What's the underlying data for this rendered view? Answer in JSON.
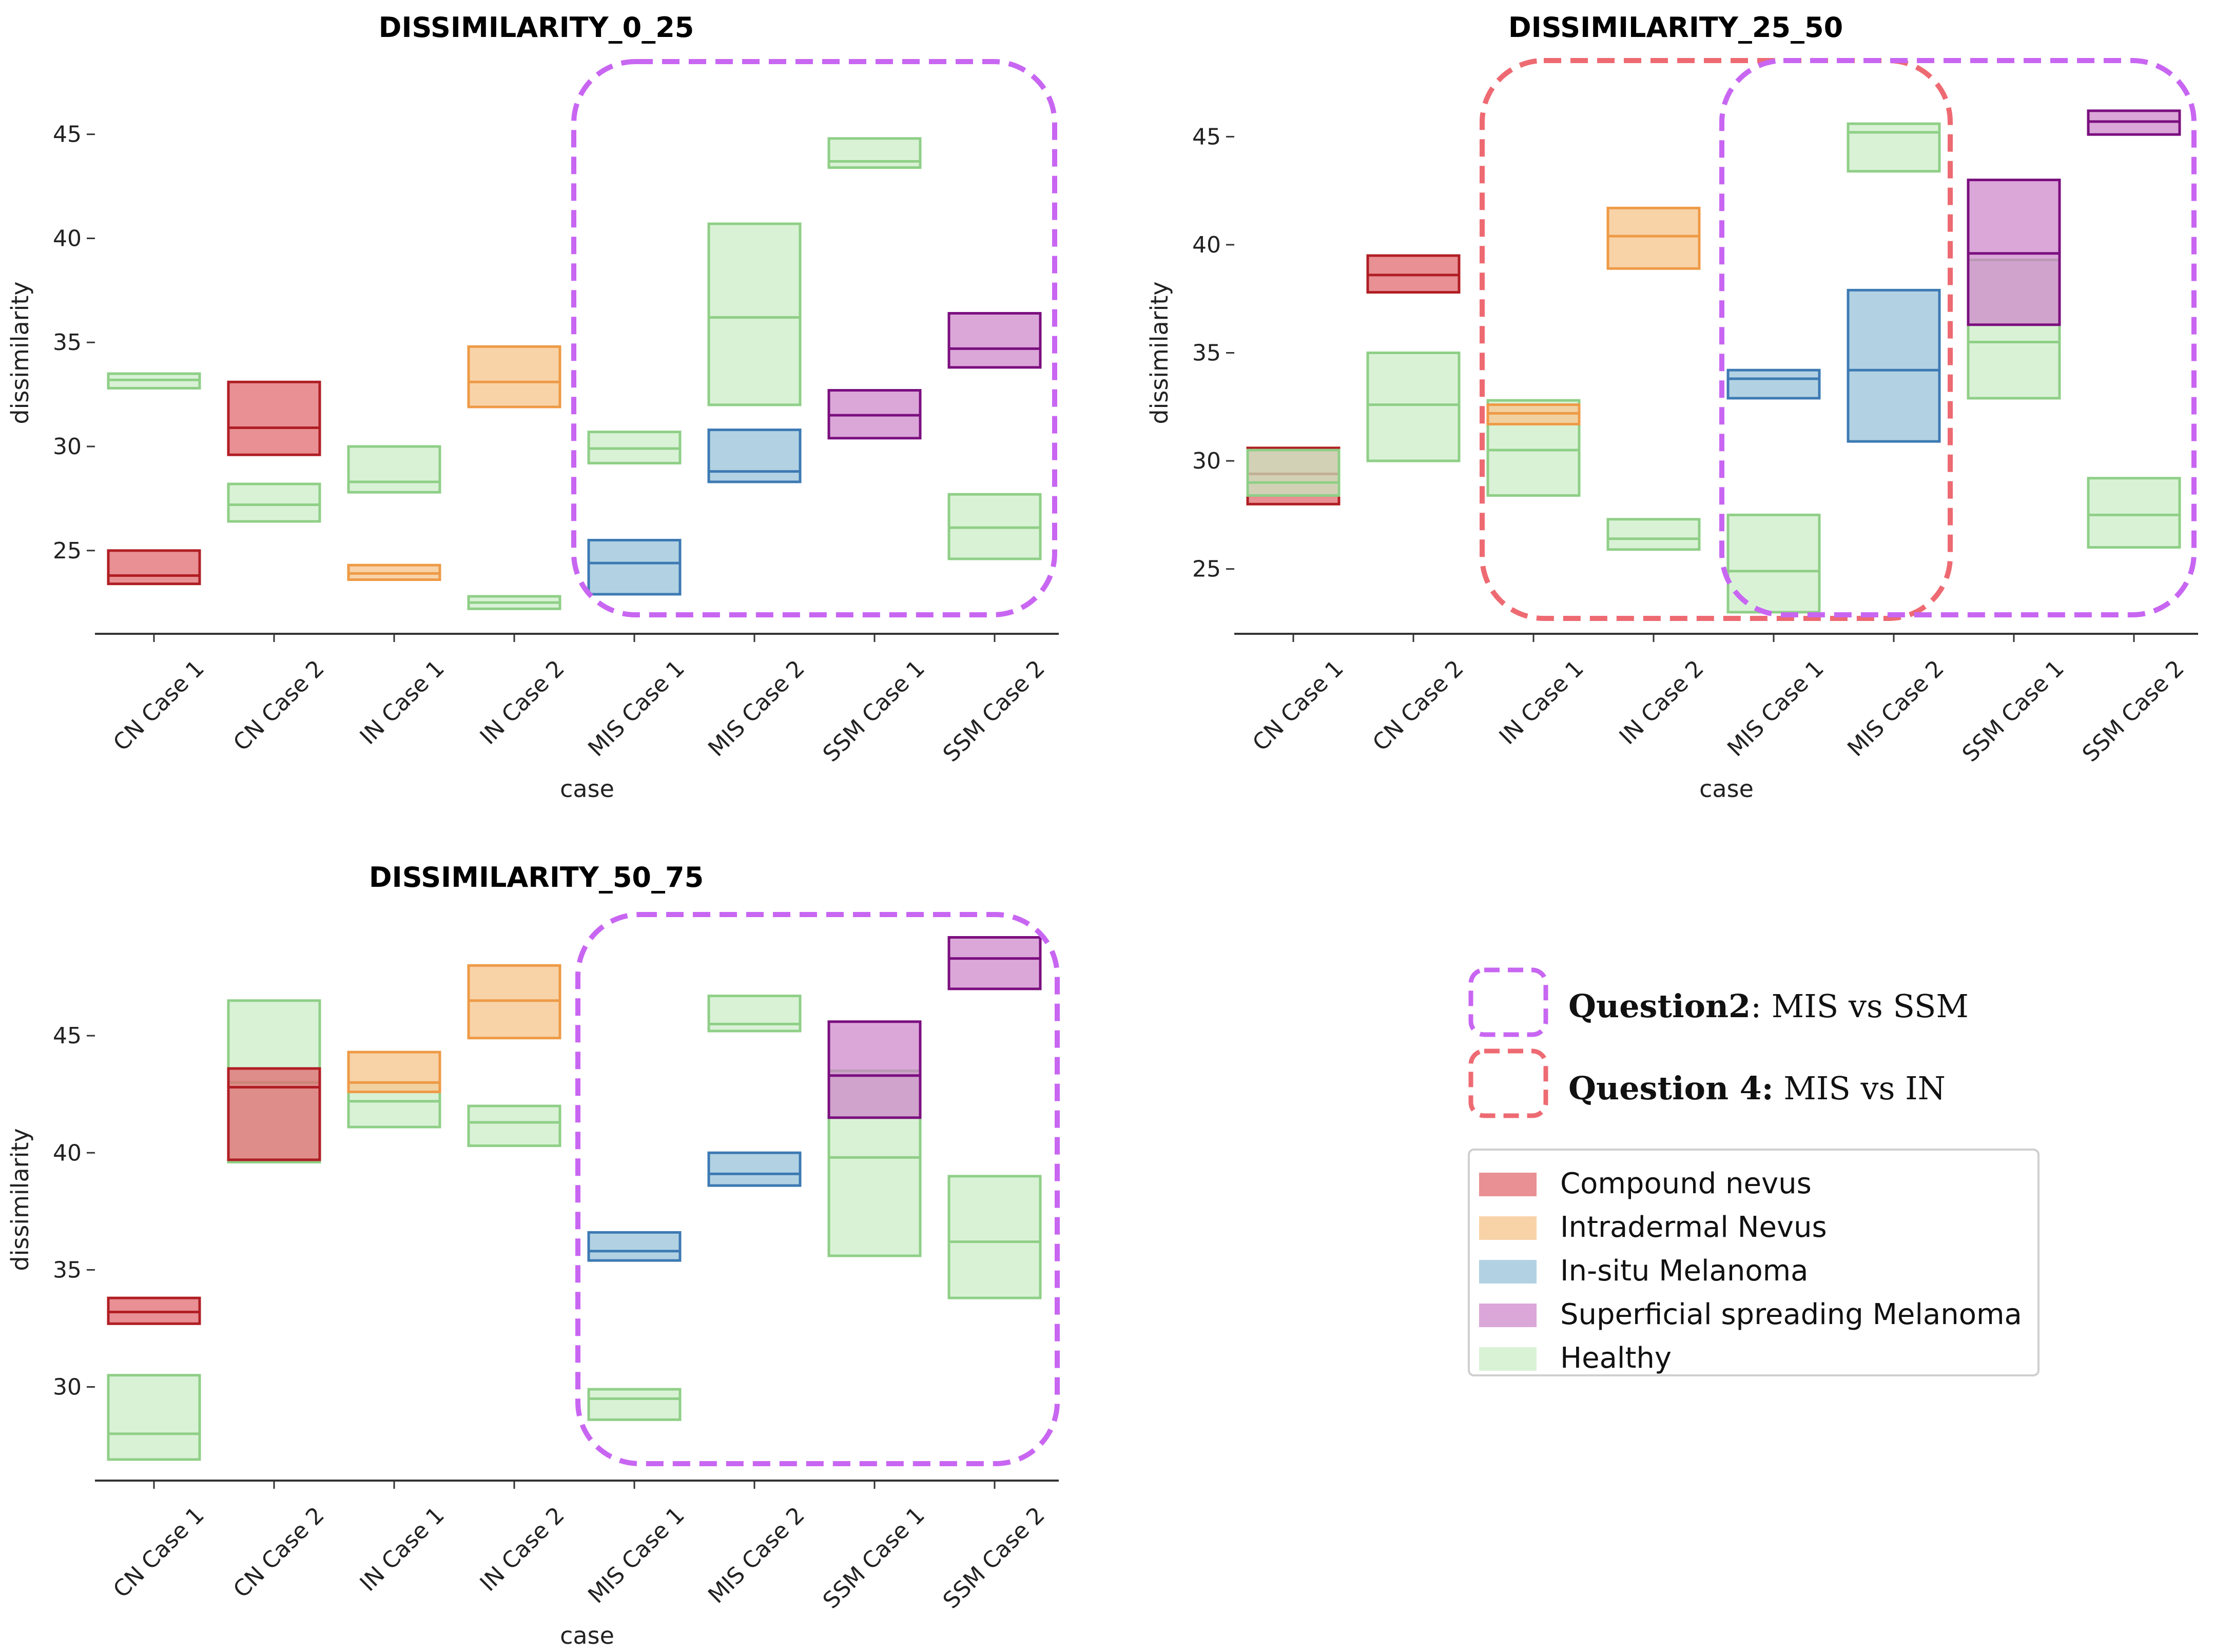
{
  "chart_data": [
    {
      "type": "box",
      "title": "DISSIMILARITY_0_25",
      "xlabel": "case",
      "ylabel": "dissimilarity",
      "ylim": [
        21,
        48
      ],
      "yticks": [
        25,
        30,
        35,
        40,
        45
      ],
      "categories": [
        "CN Case 1",
        "CN Case 2",
        "IN Case 1",
        "IN Case 2",
        "MIS Case 1",
        "MIS Case 2",
        "SSM Case 1",
        "SSM Case 2"
      ],
      "boxes": [
        {
          "cat": 0,
          "cls": "healthy",
          "q1": 32.8,
          "median": 33.2,
          "q3": 33.5
        },
        {
          "cat": 0,
          "cls": "cn",
          "q1": 23.4,
          "median": 23.8,
          "q3": 25.0
        },
        {
          "cat": 1,
          "cls": "healthy",
          "q1": 26.4,
          "median": 27.2,
          "q3": 28.2
        },
        {
          "cat": 1,
          "cls": "cn",
          "q1": 29.6,
          "median": 30.9,
          "q3": 33.1
        },
        {
          "cat": 2,
          "cls": "healthy",
          "q1": 27.8,
          "median": 28.3,
          "q3": 30.0
        },
        {
          "cat": 2,
          "cls": "in",
          "q1": 23.6,
          "median": 23.9,
          "q3": 24.3
        },
        {
          "cat": 3,
          "cls": "healthy",
          "q1": 22.2,
          "median": 22.5,
          "q3": 22.8
        },
        {
          "cat": 3,
          "cls": "in",
          "q1": 31.9,
          "median": 33.1,
          "q3": 34.8
        },
        {
          "cat": 4,
          "cls": "healthy",
          "q1": 29.2,
          "median": 29.9,
          "q3": 30.7
        },
        {
          "cat": 4,
          "cls": "mis",
          "q1": 22.9,
          "median": 24.4,
          "q3": 25.5
        },
        {
          "cat": 5,
          "cls": "healthy",
          "q1": 32.0,
          "median": 36.2,
          "q3": 40.7
        },
        {
          "cat": 5,
          "cls": "mis",
          "q1": 28.3,
          "median": 28.8,
          "q3": 30.8
        },
        {
          "cat": 6,
          "cls": "healthy",
          "q1": 43.4,
          "median": 43.7,
          "q3": 44.8
        },
        {
          "cat": 6,
          "cls": "ssm",
          "q1": 30.4,
          "median": 31.5,
          "q3": 32.7
        },
        {
          "cat": 7,
          "cls": "healthy",
          "q1": 24.6,
          "median": 26.1,
          "q3": 27.7
        },
        {
          "cat": 7,
          "cls": "ssm",
          "q1": 33.8,
          "median": 34.7,
          "q3": 36.4
        }
      ],
      "highlights": [
        {
          "question": "q2",
          "from_cat": 4,
          "to_cat": 7
        }
      ]
    },
    {
      "type": "box",
      "title": "DISSIMILARITY_25_50",
      "xlabel": "case",
      "ylabel": "dissimilarity",
      "ylim": [
        22,
        48
      ],
      "yticks": [
        25,
        30,
        35,
        40,
        45
      ],
      "categories": [
        "CN Case 1",
        "CN Case 2",
        "IN Case 1",
        "IN Case 2",
        "MIS Case 1",
        "MIS Case 2",
        "SSM Case 1",
        "SSM Case 2"
      ],
      "boxes": [
        {
          "cat": 0,
          "cls": "cn",
          "q1": 28.0,
          "median": 29.4,
          "q3": 30.6
        },
        {
          "cat": 0,
          "cls": "healthy",
          "q1": 28.4,
          "median": 29.0,
          "q3": 30.5
        },
        {
          "cat": 1,
          "cls": "healthy",
          "q1": 30.0,
          "median": 32.6,
          "q3": 35.0
        },
        {
          "cat": 1,
          "cls": "cn",
          "q1": 37.8,
          "median": 38.6,
          "q3": 39.5
        },
        {
          "cat": 2,
          "cls": "healthy",
          "q1": 28.4,
          "median": 30.5,
          "q3": 32.8
        },
        {
          "cat": 2,
          "cls": "in",
          "q1": 31.7,
          "median": 32.2,
          "q3": 32.6
        },
        {
          "cat": 3,
          "cls": "healthy",
          "q1": 25.9,
          "median": 26.4,
          "q3": 27.3
        },
        {
          "cat": 3,
          "cls": "in",
          "q1": 38.9,
          "median": 40.4,
          "q3": 41.7
        },
        {
          "cat": 4,
          "cls": "healthy",
          "q1": 23.0,
          "median": 24.9,
          "q3": 27.5
        },
        {
          "cat": 4,
          "cls": "mis",
          "q1": 32.9,
          "median": 33.8,
          "q3": 34.2
        },
        {
          "cat": 5,
          "cls": "healthy",
          "q1": 43.4,
          "median": 45.2,
          "q3": 45.6
        },
        {
          "cat": 5,
          "cls": "mis",
          "q1": 30.9,
          "median": 34.2,
          "q3": 37.9
        },
        {
          "cat": 6,
          "cls": "healthy",
          "q1": 32.9,
          "median": 35.5,
          "q3": 39.3
        },
        {
          "cat": 6,
          "cls": "ssm",
          "q1": 36.3,
          "median": 39.6,
          "q3": 43.0
        },
        {
          "cat": 7,
          "cls": "healthy",
          "q1": 26.0,
          "median": 27.5,
          "q3": 29.2
        },
        {
          "cat": 7,
          "cls": "ssm",
          "q1": 45.1,
          "median": 45.7,
          "q3": 46.2
        }
      ],
      "highlights": [
        {
          "question": "q4",
          "from_cat": 2,
          "to_cat": 5
        },
        {
          "question": "q2",
          "from_cat": 4,
          "to_cat": 7
        }
      ]
    },
    {
      "type": "box",
      "title": "DISSIMILARITY_50_75",
      "xlabel": "case",
      "ylabel": "dissimilarity",
      "ylim": [
        26,
        50
      ],
      "yticks": [
        30,
        35,
        40,
        45
      ],
      "categories": [
        "CN Case 1",
        "CN Case 2",
        "IN Case 1",
        "IN Case 2",
        "MIS Case 1",
        "MIS Case 2",
        "SSM Case 1",
        "SSM Case 2"
      ],
      "boxes": [
        {
          "cat": 0,
          "cls": "healthy",
          "q1": 26.9,
          "median": 28.0,
          "q3": 30.5
        },
        {
          "cat": 0,
          "cls": "cn",
          "q1": 32.7,
          "median": 33.2,
          "q3": 33.8
        },
        {
          "cat": 1,
          "cls": "healthy",
          "q1": 39.6,
          "median": 43.0,
          "q3": 46.5
        },
        {
          "cat": 1,
          "cls": "cn",
          "q1": 39.7,
          "median": 42.8,
          "q3": 43.6
        },
        {
          "cat": 2,
          "cls": "healthy",
          "q1": 41.1,
          "median": 42.2,
          "q3": 43.0
        },
        {
          "cat": 2,
          "cls": "in",
          "q1": 42.6,
          "median": 43.0,
          "q3": 44.3
        },
        {
          "cat": 3,
          "cls": "healthy",
          "q1": 40.3,
          "median": 41.3,
          "q3": 42.0
        },
        {
          "cat": 3,
          "cls": "in",
          "q1": 44.9,
          "median": 46.5,
          "q3": 48.0
        },
        {
          "cat": 4,
          "cls": "healthy",
          "q1": 28.6,
          "median": 29.5,
          "q3": 29.9
        },
        {
          "cat": 4,
          "cls": "mis",
          "q1": 35.4,
          "median": 35.8,
          "q3": 36.6
        },
        {
          "cat": 5,
          "cls": "healthy",
          "q1": 45.2,
          "median": 45.5,
          "q3": 46.7
        },
        {
          "cat": 5,
          "cls": "mis",
          "q1": 38.6,
          "median": 39.1,
          "q3": 40.0
        },
        {
          "cat": 6,
          "cls": "healthy",
          "q1": 35.6,
          "median": 39.8,
          "q3": 43.5
        },
        {
          "cat": 6,
          "cls": "ssm",
          "q1": 41.5,
          "median": 43.3,
          "q3": 45.6
        },
        {
          "cat": 7,
          "cls": "healthy",
          "q1": 33.8,
          "median": 36.2,
          "q3": 39.0
        },
        {
          "cat": 7,
          "cls": "ssm",
          "q1": 47.0,
          "median": 48.3,
          "q3": 49.2
        }
      ],
      "highlights": [
        {
          "question": "q2",
          "from_cat": 4,
          "to_cat": 7
        }
      ]
    }
  ],
  "classes": {
    "cn": {
      "label": "Compound nevus",
      "fill": "#e06b70",
      "stroke": "#b01e24",
      "opacity": 0.75
    },
    "in": {
      "label": "Intradermal Nevus",
      "fill": "#f6c892",
      "stroke": "#ee9a46",
      "opacity": 0.8
    },
    "mis": {
      "label": "In-situ Melanoma",
      "fill": "#9fc7dc",
      "stroke": "#3d7ab3",
      "opacity": 0.8
    },
    "ssm": {
      "label": "Superficial spreading Melanoma",
      "fill": "#cc82c9",
      "stroke": "#7b0f7f",
      "opacity": 0.7
    },
    "healthy": {
      "label": "Healthy",
      "fill": "#c9ecc4",
      "stroke": "#8fcf87",
      "opacity": 0.7
    }
  },
  "legend_order": [
    "cn",
    "in",
    "mis",
    "ssm",
    "healthy"
  ],
  "questions": {
    "q2": {
      "bold": "Question2",
      "rest": ": MIS vs SSM",
      "color": "#c866f2"
    },
    "q4": {
      "bold": "Question 4:",
      "rest": " MIS vs IN",
      "color": "#ee6a72"
    }
  }
}
